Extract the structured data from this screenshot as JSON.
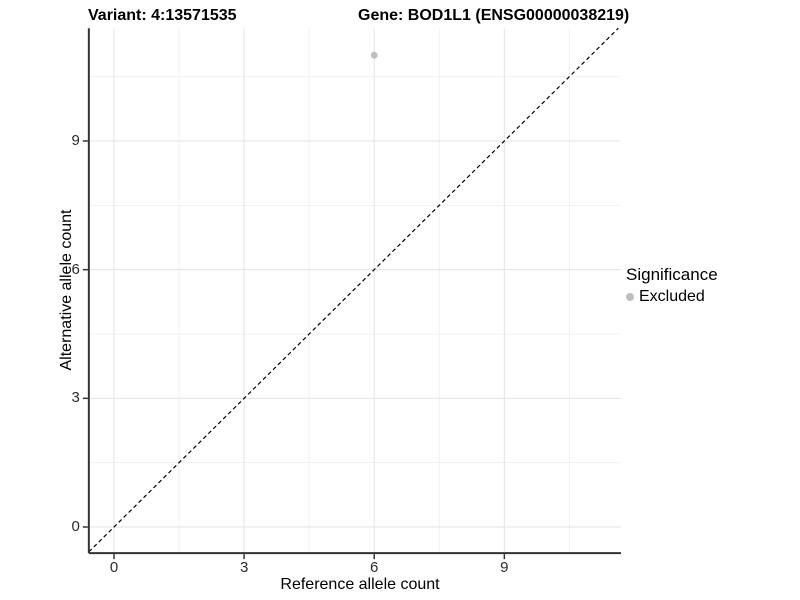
{
  "titles": {
    "variant": "Variant: 4:13571535",
    "gene": "Gene: BOD1L1 (ENSG00000038219)"
  },
  "axes": {
    "x": {
      "label": "Reference allele count"
    },
    "y": {
      "label": "Alternative allele count"
    }
  },
  "legend": {
    "title": "Significance",
    "items": [
      {
        "label": "Excluded",
        "color": "#bebebe"
      }
    ]
  },
  "colors": {
    "major_grid": "#e3e3e3",
    "minor_grid": "#f1f1f1",
    "axis_line": "#333333",
    "reference_line": "#000000",
    "point": "#bebebe"
  },
  "chart_data": {
    "type": "scatter",
    "title": "Variant: 4:13571535  |  Gene: BOD1L1 (ENSG00000038219)",
    "xlabel": "Reference allele count",
    "ylabel": "Alternative allele count",
    "xlim": [
      -0.58,
      11.69
    ],
    "ylim": [
      -0.61,
      11.63
    ],
    "x_ticks": [
      0,
      3,
      6,
      9
    ],
    "y_ticks": [
      0,
      3,
      6,
      9
    ],
    "minor_tick_offset": 1.5,
    "grid": true,
    "legend_position": "right",
    "series": [
      {
        "name": "Excluded",
        "color": "#bebebe",
        "points": [
          {
            "x": 6,
            "y": 11
          }
        ]
      }
    ],
    "reference_line": {
      "kind": "identity",
      "equation": "y = x",
      "style": "dashed",
      "color": "#000000"
    }
  }
}
